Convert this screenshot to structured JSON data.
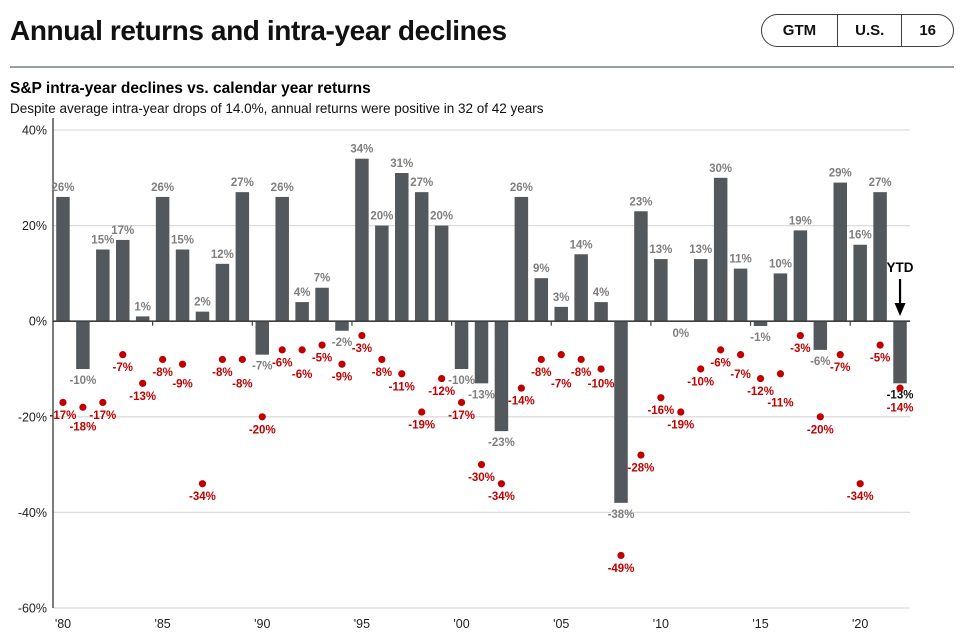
{
  "header": {
    "title": "Annual returns and intra-year declines",
    "tabs": [
      {
        "label": "GTM"
      },
      {
        "label": "U.S."
      },
      {
        "label": "16"
      }
    ]
  },
  "chart_header": {
    "title": "S&P intra-year declines vs. calendar year returns",
    "subtitle": "Despite average intra-year drops of 14.0%, annual returns were positive in 32 of 42 years"
  },
  "chart_data": {
    "type": "bar",
    "title": "S&P intra-year declines vs. calendar year returns",
    "categories": [
      "1980",
      "1981",
      "1982",
      "1983",
      "1984",
      "1985",
      "1986",
      "1987",
      "1988",
      "1989",
      "1990",
      "1991",
      "1992",
      "1993",
      "1994",
      "1995",
      "1996",
      "1997",
      "1998",
      "1999",
      "2000",
      "2001",
      "2002",
      "2003",
      "2004",
      "2005",
      "2006",
      "2007",
      "2008",
      "2009",
      "2010",
      "2011",
      "2012",
      "2013",
      "2014",
      "2015",
      "2016",
      "2017",
      "2018",
      "2019",
      "2020",
      "2021",
      "YTD"
    ],
    "series": [
      {
        "name": "Calendar year returns",
        "type": "bar",
        "color": "#53585c",
        "values": [
          26,
          -10,
          15,
          17,
          1,
          26,
          15,
          2,
          12,
          27,
          -7,
          26,
          4,
          7,
          -2,
          34,
          20,
          31,
          27,
          20,
          -10,
          -13,
          -23,
          26,
          9,
          3,
          14,
          4,
          -38,
          23,
          13,
          0,
          13,
          30,
          11,
          -1,
          10,
          19,
          -6,
          29,
          16,
          27,
          -13
        ]
      },
      {
        "name": "Intra-year declines",
        "type": "scatter",
        "color": "#c00000",
        "values": [
          -17,
          -18,
          -17,
          -7,
          -13,
          -8,
          -9,
          -34,
          -8,
          -8,
          -20,
          -6,
          -6,
          -5,
          -9,
          -3,
          -8,
          -11,
          -19,
          -12,
          -17,
          -30,
          -34,
          -14,
          -8,
          -7,
          -8,
          -10,
          -49,
          -28,
          -16,
          -19,
          -10,
          -6,
          -7,
          -12,
          -11,
          -3,
          -20,
          -7,
          -34,
          -5,
          -14
        ]
      }
    ],
    "ylim": [
      -60,
      40
    ],
    "yticks": [
      40,
      20,
      0,
      -20,
      -40,
      -60
    ],
    "ytick_labels": [
      "40%",
      "20%",
      "0%",
      "-20%",
      "-40%",
      "-60%"
    ],
    "xtick_positions": [
      0,
      5,
      10,
      15,
      20,
      25,
      30,
      35,
      40
    ],
    "xtick_labels": [
      "'80",
      "'85",
      "'90",
      "'95",
      "'00",
      "'05",
      "'10",
      "'15",
      "'20"
    ],
    "ytd_annotation": "YTD",
    "grid": "horizontal",
    "legend": "none",
    "colors": {
      "bar": "#53585c",
      "bar_label": "#7f7f7f",
      "decline": "#c00000",
      "ytd_label": "#111111",
      "gridline": "#dcdcdc",
      "zero_line": "#3f3f3f",
      "axis_text": "#1f1f1f"
    }
  }
}
